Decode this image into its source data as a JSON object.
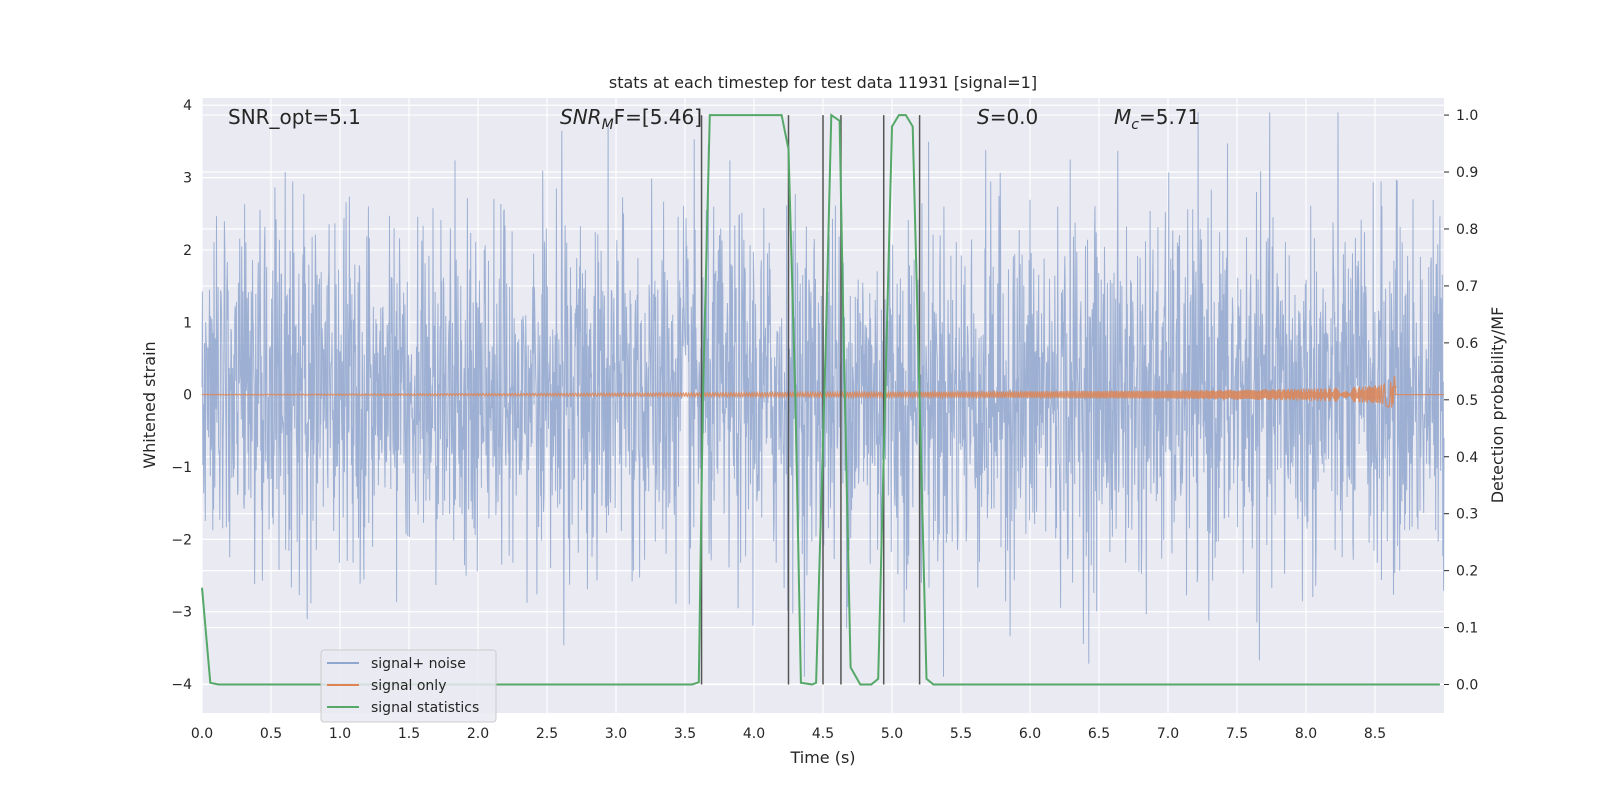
{
  "chart_data": {
    "type": "line",
    "title": "stats at each timestep for test data 11931 [signal=1]",
    "xlabel": "Time (s)",
    "ylabel": "Whitened strain",
    "y2label": "Detection probability/MF",
    "xlim": [
      0.0,
      9.0
    ],
    "ylim": [
      -4.4,
      4.1
    ],
    "y2lim": [
      -0.05,
      1.03
    ],
    "xticks": [
      "0.0",
      "0.5",
      "1.0",
      "1.5",
      "2.0",
      "2.5",
      "3.0",
      "3.5",
      "4.0",
      "4.5",
      "5.0",
      "5.5",
      "6.0",
      "6.5",
      "7.0",
      "7.5",
      "8.0",
      "8.5"
    ],
    "xtick_values": [
      0.0,
      0.5,
      1.0,
      1.5,
      2.0,
      2.5,
      3.0,
      3.5,
      4.0,
      4.5,
      5.0,
      5.5,
      6.0,
      6.5,
      7.0,
      7.5,
      8.0,
      8.5
    ],
    "yticks": [
      "−4",
      "−3",
      "−2",
      "−1",
      "0",
      "1",
      "2",
      "3",
      "4"
    ],
    "ytick_values": [
      -4,
      -3,
      -2,
      -1,
      0,
      1,
      2,
      3,
      4
    ],
    "y2ticks": [
      "0.0",
      "0.1",
      "0.2",
      "0.3",
      "0.4",
      "0.5",
      "0.6",
      "0.7",
      "0.8",
      "0.9",
      "1.0"
    ],
    "y2tick_values": [
      0.0,
      0.1,
      0.2,
      0.3,
      0.4,
      0.5,
      0.6,
      0.7,
      0.8,
      0.9,
      1.0
    ],
    "grid": true,
    "legend_position": "bottom-left",
    "annotations": {
      "snr_opt": "SNR_opt=5.1",
      "snr_mf_main": "SNR",
      "snr_mf_sub": "M",
      "snr_mf_rest": "F=[5.46]",
      "s_main": "S",
      "s_rest": "=0.0",
      "mc_main": "M",
      "mc_sub": "c",
      "mc_rest": "=5.71"
    },
    "series": [
      {
        "name": "signal+ noise",
        "color": "#8fa6ce",
        "style": "noise",
        "duration": 9.0,
        "amplitude_typical": 1.3,
        "amplitude_max": 3.9
      },
      {
        "name": "signal only",
        "color": "#dd8452",
        "style": "chirp",
        "t_start": 0.0,
        "t_merger": 8.65,
        "amplitude_max": 0.25
      },
      {
        "name": "signal statistics",
        "color": "#55a868",
        "axis": "right",
        "points": [
          [
            0.0,
            0.17
          ],
          [
            0.06,
            0.003
          ],
          [
            0.12,
            0.0
          ],
          [
            3.55,
            0.0
          ],
          [
            3.6,
            0.004
          ],
          [
            3.63,
            0.5
          ],
          [
            3.68,
            1.0
          ],
          [
            3.75,
            1.0
          ],
          [
            4.2,
            1.0
          ],
          [
            4.25,
            0.94
          ],
          [
            4.3,
            0.5
          ],
          [
            4.34,
            0.003
          ],
          [
            4.42,
            0.0
          ],
          [
            4.45,
            0.003
          ],
          [
            4.52,
            0.6
          ],
          [
            4.56,
            1.0
          ],
          [
            4.62,
            0.99
          ],
          [
            4.65,
            0.6
          ],
          [
            4.7,
            0.03
          ],
          [
            4.77,
            0.0
          ],
          [
            4.85,
            0.0
          ],
          [
            4.9,
            0.01
          ],
          [
            4.95,
            0.5
          ],
          [
            5.0,
            0.98
          ],
          [
            5.05,
            1.0
          ],
          [
            5.1,
            1.0
          ],
          [
            5.15,
            0.98
          ],
          [
            5.2,
            0.5
          ],
          [
            5.25,
            0.01
          ],
          [
            5.3,
            0.0
          ],
          [
            8.97,
            0.0
          ]
        ]
      }
    ],
    "vlines": [
      3.62,
      4.25,
      4.5,
      4.63,
      4.94,
      5.2
    ],
    "vline_color": "#555555"
  }
}
